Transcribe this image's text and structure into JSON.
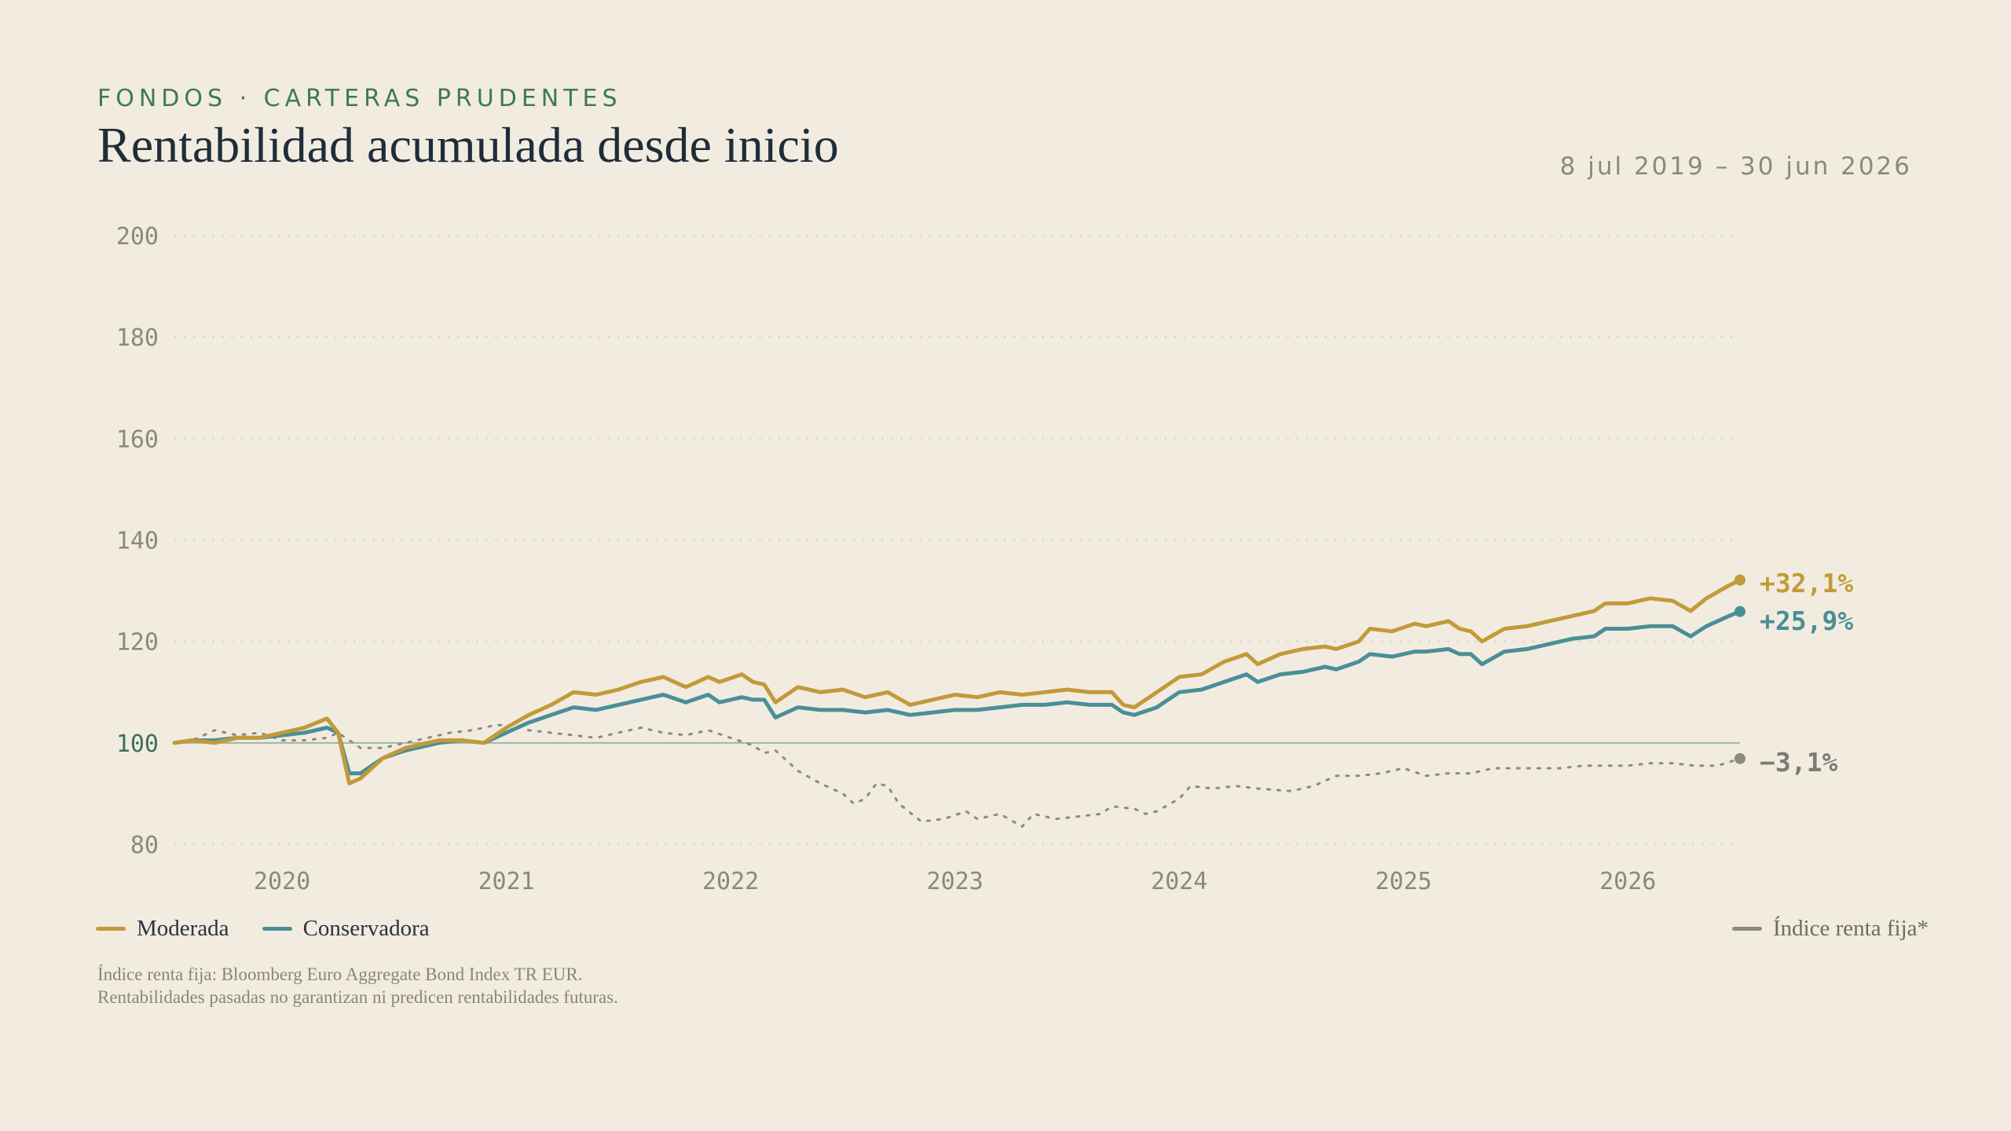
{
  "header": {
    "eyebrow": "FONDOS · CARTERAS PRUDENTES",
    "title": "Rentabilidad acumulada desde inicio",
    "date_range": "8 jul 2019 – 30 jun 2026"
  },
  "legend": {
    "moderada": "Moderada",
    "conservadora": "Conservadora",
    "indice": "Índice renta fija*"
  },
  "footnote": {
    "line1": "Índice renta fija: Bloomberg Euro Aggregate Bond Index TR EUR.",
    "line2": "Rentabilidades pasadas no garantizan ni predicen rentabilidades futuras."
  },
  "colors": {
    "moderada": "#c29a3a",
    "conservadora": "#4a8f98",
    "indice": "#8e8a80",
    "baseline": "#9cb8a4",
    "grid": "#d6d9c8"
  },
  "chart_data": {
    "type": "line",
    "xlim": [
      2019.52,
      2026.5
    ],
    "ylim": [
      80,
      200
    ],
    "y_ticks": [
      80,
      100,
      120,
      140,
      160,
      180,
      200
    ],
    "x_ticks": [
      2020,
      2021,
      2022,
      2023,
      2024,
      2025,
      2026
    ],
    "x_tick_labels": [
      "2020",
      "2021",
      "2022",
      "2023",
      "2024",
      "2025",
      "2026"
    ],
    "baseline": 100,
    "grid": true,
    "legend_position": "bottom",
    "series": [
      {
        "name": "Moderada",
        "end_label": "+32,1%",
        "points": [
          [
            2019.52,
            100
          ],
          [
            2019.6,
            100.5
          ],
          [
            2019.7,
            100
          ],
          [
            2019.8,
            101
          ],
          [
            2019.9,
            101
          ],
          [
            2020.0,
            102
          ],
          [
            2020.1,
            103
          ],
          [
            2020.2,
            104.8
          ],
          [
            2020.25,
            102
          ],
          [
            2020.3,
            92
          ],
          [
            2020.35,
            93
          ],
          [
            2020.45,
            97
          ],
          [
            2020.55,
            99
          ],
          [
            2020.7,
            100.5
          ],
          [
            2020.8,
            100.5
          ],
          [
            2020.9,
            100
          ],
          [
            2021.0,
            103
          ],
          [
            2021.1,
            105.5
          ],
          [
            2021.2,
            107.5
          ],
          [
            2021.3,
            110
          ],
          [
            2021.4,
            109.5
          ],
          [
            2021.5,
            110.5
          ],
          [
            2021.6,
            112
          ],
          [
            2021.7,
            113
          ],
          [
            2021.8,
            111
          ],
          [
            2021.9,
            113
          ],
          [
            2021.95,
            112
          ],
          [
            2022.05,
            113.5
          ],
          [
            2022.1,
            112
          ],
          [
            2022.15,
            111.5
          ],
          [
            2022.2,
            108
          ],
          [
            2022.3,
            111
          ],
          [
            2022.4,
            110
          ],
          [
            2022.5,
            110.5
          ],
          [
            2022.6,
            109
          ],
          [
            2022.7,
            110
          ],
          [
            2022.8,
            107.5
          ],
          [
            2022.9,
            108.5
          ],
          [
            2023.0,
            109.5
          ],
          [
            2023.1,
            109
          ],
          [
            2023.2,
            110
          ],
          [
            2023.3,
            109.5
          ],
          [
            2023.4,
            110
          ],
          [
            2023.5,
            110.5
          ],
          [
            2023.6,
            110
          ],
          [
            2023.7,
            110
          ],
          [
            2023.75,
            107.5
          ],
          [
            2023.8,
            107
          ],
          [
            2023.9,
            110
          ],
          [
            2024.0,
            113
          ],
          [
            2024.1,
            113.5
          ],
          [
            2024.2,
            116
          ],
          [
            2024.3,
            117.5
          ],
          [
            2024.35,
            115.5
          ],
          [
            2024.45,
            117.5
          ],
          [
            2024.55,
            118.5
          ],
          [
            2024.65,
            119
          ],
          [
            2024.7,
            118.5
          ],
          [
            2024.8,
            120
          ],
          [
            2024.85,
            122.5
          ],
          [
            2024.95,
            122
          ],
          [
            2025.05,
            123.5
          ],
          [
            2025.1,
            123
          ],
          [
            2025.2,
            124
          ],
          [
            2025.25,
            122.5
          ],
          [
            2025.3,
            122
          ],
          [
            2025.35,
            120
          ],
          [
            2025.45,
            122.5
          ],
          [
            2025.55,
            123
          ],
          [
            2025.65,
            124
          ],
          [
            2025.75,
            125
          ],
          [
            2025.85,
            126
          ],
          [
            2025.9,
            127.5
          ],
          [
            2026.0,
            127.5
          ],
          [
            2026.1,
            128.5
          ],
          [
            2026.2,
            128
          ],
          [
            2026.28,
            126
          ],
          [
            2026.35,
            128.5
          ],
          [
            2026.45,
            131
          ],
          [
            2026.5,
            132.1
          ]
        ]
      },
      {
        "name": "Conservadora",
        "end_label": "+25,9%",
        "points": [
          [
            2019.52,
            100
          ],
          [
            2019.6,
            100.5
          ],
          [
            2019.7,
            100.5
          ],
          [
            2019.8,
            101
          ],
          [
            2019.9,
            101
          ],
          [
            2020.0,
            101.5
          ],
          [
            2020.1,
            102
          ],
          [
            2020.2,
            103
          ],
          [
            2020.25,
            102
          ],
          [
            2020.3,
            94
          ],
          [
            2020.35,
            94
          ],
          [
            2020.45,
            97
          ],
          [
            2020.55,
            98.5
          ],
          [
            2020.7,
            100
          ],
          [
            2020.8,
            100.5
          ],
          [
            2020.9,
            100
          ],
          [
            2021.0,
            102
          ],
          [
            2021.1,
            104
          ],
          [
            2021.2,
            105.5
          ],
          [
            2021.3,
            107
          ],
          [
            2021.4,
            106.5
          ],
          [
            2021.5,
            107.5
          ],
          [
            2021.6,
            108.5
          ],
          [
            2021.7,
            109.5
          ],
          [
            2021.8,
            108
          ],
          [
            2021.9,
            109.5
          ],
          [
            2021.95,
            108
          ],
          [
            2022.05,
            109
          ],
          [
            2022.1,
            108.5
          ],
          [
            2022.15,
            108.5
          ],
          [
            2022.2,
            105
          ],
          [
            2022.3,
            107
          ],
          [
            2022.4,
            106.5
          ],
          [
            2022.5,
            106.5
          ],
          [
            2022.6,
            106
          ],
          [
            2022.7,
            106.5
          ],
          [
            2022.8,
            105.5
          ],
          [
            2022.9,
            106
          ],
          [
            2023.0,
            106.5
          ],
          [
            2023.1,
            106.5
          ],
          [
            2023.2,
            107
          ],
          [
            2023.3,
            107.5
          ],
          [
            2023.4,
            107.5
          ],
          [
            2023.5,
            108
          ],
          [
            2023.6,
            107.5
          ],
          [
            2023.7,
            107.5
          ],
          [
            2023.75,
            106
          ],
          [
            2023.8,
            105.5
          ],
          [
            2023.9,
            107
          ],
          [
            2024.0,
            110
          ],
          [
            2024.1,
            110.5
          ],
          [
            2024.2,
            112
          ],
          [
            2024.3,
            113.5
          ],
          [
            2024.35,
            112
          ],
          [
            2024.45,
            113.5
          ],
          [
            2024.55,
            114
          ],
          [
            2024.65,
            115
          ],
          [
            2024.7,
            114.5
          ],
          [
            2024.8,
            116
          ],
          [
            2024.85,
            117.5
          ],
          [
            2024.95,
            117
          ],
          [
            2025.05,
            118
          ],
          [
            2025.1,
            118
          ],
          [
            2025.2,
            118.5
          ],
          [
            2025.25,
            117.5
          ],
          [
            2025.3,
            117.5
          ],
          [
            2025.35,
            115.5
          ],
          [
            2025.45,
            118
          ],
          [
            2025.55,
            118.5
          ],
          [
            2025.65,
            119.5
          ],
          [
            2025.75,
            120.5
          ],
          [
            2025.85,
            121
          ],
          [
            2025.9,
            122.5
          ],
          [
            2026.0,
            122.5
          ],
          [
            2026.1,
            123
          ],
          [
            2026.2,
            123
          ],
          [
            2026.28,
            121
          ],
          [
            2026.35,
            123
          ],
          [
            2026.45,
            125
          ],
          [
            2026.5,
            125.9
          ]
        ]
      },
      {
        "name": "Índice renta fija*",
        "end_label": "−3,1%",
        "points": [
          [
            2019.52,
            100
          ],
          [
            2019.6,
            100.5
          ],
          [
            2019.7,
            102.5
          ],
          [
            2019.8,
            101.5
          ],
          [
            2019.9,
            102
          ],
          [
            2020.0,
            100.5
          ],
          [
            2020.1,
            100.5
          ],
          [
            2020.2,
            101
          ],
          [
            2020.25,
            102
          ],
          [
            2020.35,
            99
          ],
          [
            2020.45,
            99
          ],
          [
            2020.55,
            100
          ],
          [
            2020.65,
            101
          ],
          [
            2020.75,
            102
          ],
          [
            2020.85,
            102.5
          ],
          [
            2020.95,
            103.5
          ],
          [
            2021.05,
            103.5
          ],
          [
            2021.1,
            102.5
          ],
          [
            2021.2,
            102
          ],
          [
            2021.3,
            101.5
          ],
          [
            2021.4,
            101
          ],
          [
            2021.5,
            102
          ],
          [
            2021.6,
            103
          ],
          [
            2021.7,
            102
          ],
          [
            2021.8,
            101.5
          ],
          [
            2021.9,
            102.5
          ],
          [
            2022.0,
            101
          ],
          [
            2022.1,
            99.5
          ],
          [
            2022.15,
            98
          ],
          [
            2022.2,
            98.5
          ],
          [
            2022.3,
            94.5
          ],
          [
            2022.4,
            92
          ],
          [
            2022.5,
            90
          ],
          [
            2022.55,
            88
          ],
          [
            2022.6,
            89
          ],
          [
            2022.65,
            92
          ],
          [
            2022.7,
            91.5
          ],
          [
            2022.75,
            88
          ],
          [
            2022.85,
            84.5
          ],
          [
            2022.95,
            85
          ],
          [
            2023.05,
            86.5
          ],
          [
            2023.1,
            85
          ],
          [
            2023.2,
            86
          ],
          [
            2023.3,
            83.5
          ],
          [
            2023.35,
            86
          ],
          [
            2023.45,
            85
          ],
          [
            2023.55,
            85.5
          ],
          [
            2023.65,
            86
          ],
          [
            2023.7,
            87.5
          ],
          [
            2023.8,
            87
          ],
          [
            2023.85,
            86
          ],
          [
            2023.9,
            86.5
          ],
          [
            2024.0,
            89
          ],
          [
            2024.05,
            91.5
          ],
          [
            2024.15,
            91
          ],
          [
            2024.25,
            91.5
          ],
          [
            2024.35,
            91
          ],
          [
            2024.5,
            90.5
          ],
          [
            2024.6,
            91.5
          ],
          [
            2024.7,
            93.5
          ],
          [
            2024.8,
            93.5
          ],
          [
            2024.9,
            94
          ],
          [
            2025.0,
            95
          ],
          [
            2025.1,
            93.5
          ],
          [
            2025.2,
            94
          ],
          [
            2025.3,
            94
          ],
          [
            2025.4,
            95
          ],
          [
            2025.5,
            95
          ],
          [
            2025.6,
            95
          ],
          [
            2025.7,
            95
          ],
          [
            2025.8,
            95.5
          ],
          [
            2025.9,
            95.5
          ],
          [
            2026.0,
            95.5
          ],
          [
            2026.1,
            96
          ],
          [
            2026.2,
            96
          ],
          [
            2026.3,
            95.5
          ],
          [
            2026.4,
            95.5
          ],
          [
            2026.5,
            96.9
          ]
        ]
      }
    ]
  }
}
